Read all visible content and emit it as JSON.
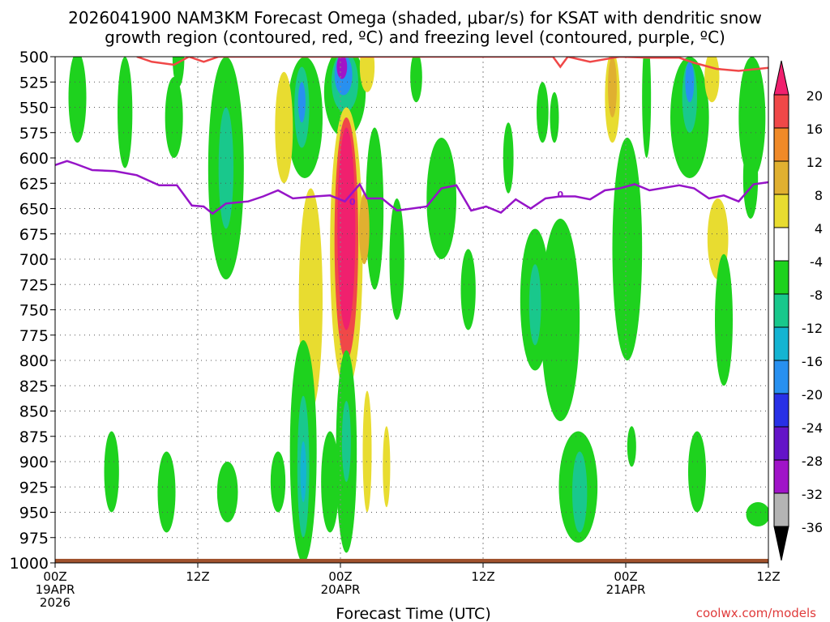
{
  "chart_data": {
    "type": "heatmap",
    "title_line1": "2026041900 NAM3KM Forecast Omega (shaded, μbar/s) for KSAT with dendritic snow",
    "title_line2": "growth region (contoured, red, ºC) and freezing level (contoured, purple, ºC)",
    "xlabel": "Forecast Time (UTC)",
    "credit": "coolwx.com/models",
    "x_range_hours": [
      0,
      48
    ],
    "y_range_mb": [
      500,
      1000
    ],
    "y_ticks": [
      {
        "v": 500,
        "label": "500"
      },
      {
        "v": 525,
        "label": "525"
      },
      {
        "v": 550,
        "label": "550"
      },
      {
        "v": 575,
        "label": "575"
      },
      {
        "v": 600,
        "label": "600"
      },
      {
        "v": 625,
        "label": "625"
      },
      {
        "v": 650,
        "label": "650"
      },
      {
        "v": 675,
        "label": "675"
      },
      {
        "v": 700,
        "label": "700"
      },
      {
        "v": 725,
        "label": "725"
      },
      {
        "v": 750,
        "label": "750"
      },
      {
        "v": 775,
        "label": "775"
      },
      {
        "v": 800,
        "label": "800"
      },
      {
        "v": 825,
        "label": "825"
      },
      {
        "v": 850,
        "label": "850"
      },
      {
        "v": 875,
        "label": "875"
      },
      {
        "v": 900,
        "label": "900"
      },
      {
        "v": 925,
        "label": "925"
      },
      {
        "v": 950,
        "label": "950"
      },
      {
        "v": 975,
        "label": "975"
      },
      {
        "v": 1000,
        "label": "1000"
      }
    ],
    "x_ticks": [
      {
        "h": 0,
        "l1": "00Z",
        "l2": "19APR",
        "l3": "2026"
      },
      {
        "h": 9.6,
        "l1": "12Z",
        "l2": "",
        "l3": ""
      },
      {
        "h": 19.2,
        "l1": "00Z",
        "l2": "20APR",
        "l3": ""
      },
      {
        "h": 28.8,
        "l1": "12Z",
        "l2": "",
        "l3": ""
      },
      {
        "h": 38.4,
        "l1": "00Z",
        "l2": "21APR",
        "l3": ""
      },
      {
        "h": 48,
        "l1": "12Z",
        "l2": "",
        "l3": ""
      }
    ],
    "colorbar": {
      "levels": [
        {
          "label": "20",
          "color": "#f0206e"
        },
        {
          "label": "16",
          "color": "#f04848"
        },
        {
          "label": "12",
          "color": "#f08a28"
        },
        {
          "label": "8",
          "color": "#e0b030"
        },
        {
          "label": "4",
          "color": "#e8dc30"
        },
        {
          "label": "-4",
          "color": "#ffffff"
        },
        {
          "label": "-8",
          "color": "#1ed21e"
        },
        {
          "label": "-12",
          "color": "#19c88c"
        },
        {
          "label": "-16",
          "color": "#14b4d2"
        },
        {
          "label": "-20",
          "color": "#2890f0"
        },
        {
          "label": "-24",
          "color": "#2830e6"
        },
        {
          "label": "-28",
          "color": "#6414c8"
        },
        {
          "label": "-32",
          "color": "#a014c8"
        },
        {
          "label": "-36",
          "color": "#b4b4b4"
        }
      ],
      "min_color": "#000000",
      "max_color": "#f0206e"
    },
    "colors": {
      "dgz_line": "#f04848",
      "freezing_line": "#9614c8",
      "ground": "#a0522d",
      "grid": "#555555",
      "green": "#1ed21e",
      "teal": "#19c88c",
      "cyan": "#14b4d2",
      "blue": "#2890f0",
      "darkblue": "#2830e6",
      "purple": "#a014c8",
      "yellow": "#e8dc30",
      "orange": "#e0b030",
      "red": "#f04848",
      "magenta": "#f0206e"
    },
    "freezing_level_label": "0",
    "freezing_level": [
      [
        0,
        607
      ],
      [
        0.8,
        603
      ],
      [
        1.4,
        606
      ],
      [
        2.5,
        612
      ],
      [
        4,
        613
      ],
      [
        5.5,
        617
      ],
      [
        7,
        627
      ],
      [
        8.2,
        627
      ],
      [
        9.2,
        647
      ],
      [
        10,
        648
      ],
      [
        10.6,
        655
      ],
      [
        11.5,
        645
      ],
      [
        13,
        643
      ],
      [
        14,
        638
      ],
      [
        15,
        632
      ],
      [
        16,
        640
      ],
      [
        17.5,
        638
      ],
      [
        18.5,
        637
      ],
      [
        19.5,
        643
      ],
      [
        20.5,
        626
      ],
      [
        21,
        640
      ],
      [
        22,
        640
      ],
      [
        23,
        652
      ],
      [
        25,
        648
      ],
      [
        26,
        630
      ],
      [
        27,
        627
      ],
      [
        28,
        652
      ],
      [
        29,
        648
      ],
      [
        30,
        654
      ],
      [
        31,
        641
      ],
      [
        32,
        650
      ],
      [
        33,
        640
      ],
      [
        34,
        638
      ],
      [
        35,
        638
      ],
      [
        36,
        641
      ],
      [
        37,
        632
      ],
      [
        38,
        630
      ],
      [
        39,
        626
      ],
      [
        40,
        632
      ],
      [
        42,
        627
      ],
      [
        43,
        630
      ],
      [
        44,
        640
      ],
      [
        45,
        637
      ],
      [
        46,
        643
      ],
      [
        47,
        626
      ],
      [
        48,
        624
      ]
    ],
    "dgz_line": [
      [
        5.5,
        500
      ],
      [
        6.5,
        505
      ],
      [
        8,
        508
      ],
      [
        9,
        500
      ],
      [
        10,
        505
      ],
      [
        11,
        500
      ],
      [
        12.5,
        500
      ],
      [
        33.5,
        500
      ],
      [
        34,
        510
      ],
      [
        34.5,
        500
      ],
      [
        36,
        505
      ],
      [
        38,
        500
      ],
      [
        40,
        501
      ],
      [
        42,
        501
      ],
      [
        43,
        506
      ],
      [
        44.5,
        512
      ],
      [
        46,
        514
      ],
      [
        48,
        511
      ]
    ],
    "omega_shapes": [
      {
        "c": "green",
        "h": 1.5,
        "p": 540,
        "w": 0.6,
        "d": 45
      },
      {
        "c": "green",
        "h": 4.7,
        "p": 555,
        "w": 0.5,
        "d": 55
      },
      {
        "c": "green",
        "h": 8.3,
        "p": 500,
        "w": 0.4,
        "d": 30
      },
      {
        "c": "green",
        "h": 8.0,
        "p": 560,
        "w": 0.6,
        "d": 40
      },
      {
        "c": "green",
        "h": 11.5,
        "p": 610,
        "w": 1.2,
        "d": 110
      },
      {
        "c": "teal",
        "h": 11.5,
        "p": 610,
        "w": 0.5,
        "d": 60
      },
      {
        "c": "green",
        "h": 16.8,
        "p": 560,
        "w": 1.2,
        "d": 60
      },
      {
        "c": "teal",
        "h": 16.6,
        "p": 550,
        "w": 0.5,
        "d": 40
      },
      {
        "c": "blue",
        "h": 16.6,
        "p": 545,
        "w": 0.25,
        "d": 20
      },
      {
        "c": "yellow",
        "h": 15.4,
        "p": 570,
        "w": 0.6,
        "d": 55
      },
      {
        "c": "yellow",
        "h": 17.2,
        "p": 740,
        "w": 0.8,
        "d": 110
      },
      {
        "c": "green",
        "h": 19.5,
        "p": 535,
        "w": 1.4,
        "d": 45
      },
      {
        "c": "teal",
        "h": 19.5,
        "p": 525,
        "w": 0.9,
        "d": 30
      },
      {
        "c": "blue",
        "h": 19.4,
        "p": 518,
        "w": 0.6,
        "d": 20
      },
      {
        "c": "purple",
        "h": 19.3,
        "p": 510,
        "w": 0.35,
        "d": 12
      },
      {
        "c": "yellow",
        "h": 21.0,
        "p": 510,
        "w": 0.5,
        "d": 25
      },
      {
        "c": "yellow",
        "h": 19.6,
        "p": 690,
        "w": 1.1,
        "d": 140
      },
      {
        "c": "red",
        "h": 19.6,
        "p": 680,
        "w": 0.8,
        "d": 120
      },
      {
        "c": "magenta",
        "h": 19.6,
        "p": 670,
        "w": 0.6,
        "d": 100
      },
      {
        "c": "green",
        "h": 21.5,
        "p": 650,
        "w": 0.6,
        "d": 80
      },
      {
        "c": "orange",
        "h": 20.8,
        "p": 670,
        "w": 0.35,
        "d": 35
      },
      {
        "c": "green",
        "h": 23.0,
        "p": 700,
        "w": 0.5,
        "d": 60
      },
      {
        "c": "green",
        "h": 24.3,
        "p": 520,
        "w": 0.4,
        "d": 25
      },
      {
        "c": "green",
        "h": 26.0,
        "p": 640,
        "w": 1.0,
        "d": 60
      },
      {
        "c": "green",
        "h": 27.8,
        "p": 730,
        "w": 0.5,
        "d": 40
      },
      {
        "c": "green",
        "h": 30.5,
        "p": 600,
        "w": 0.35,
        "d": 35
      },
      {
        "c": "green",
        "h": 33.6,
        "p": 560,
        "w": 0.3,
        "d": 25
      },
      {
        "c": "green",
        "h": 32.3,
        "p": 740,
        "w": 1.0,
        "d": 70
      },
      {
        "c": "teal",
        "h": 32.3,
        "p": 745,
        "w": 0.4,
        "d": 40
      },
      {
        "c": "green",
        "h": 34.0,
        "p": 760,
        "w": 1.3,
        "d": 100
      },
      {
        "c": "green",
        "h": 32.8,
        "p": 555,
        "w": 0.4,
        "d": 30
      },
      {
        "c": "green",
        "h": 38.5,
        "p": 690,
        "w": 1.0,
        "d": 110
      },
      {
        "c": "yellow",
        "h": 37.5,
        "p": 540,
        "w": 0.5,
        "d": 45
      },
      {
        "c": "orange",
        "h": 37.5,
        "p": 530,
        "w": 0.3,
        "d": 30
      },
      {
        "c": "green",
        "h": 39.8,
        "p": 540,
        "w": 0.3,
        "d": 60
      },
      {
        "c": "green",
        "h": 42.7,
        "p": 560,
        "w": 1.3,
        "d": 60
      },
      {
        "c": "teal",
        "h": 42.7,
        "p": 540,
        "w": 0.5,
        "d": 35
      },
      {
        "c": "blue",
        "h": 42.7,
        "p": 525,
        "w": 0.3,
        "d": 20
      },
      {
        "c": "yellow",
        "h": 44.2,
        "p": 520,
        "w": 0.5,
        "d": 25
      },
      {
        "c": "yellow",
        "h": 44.6,
        "p": 680,
        "w": 0.7,
        "d": 40
      },
      {
        "c": "green",
        "h": 45.0,
        "p": 760,
        "w": 0.6,
        "d": 65
      },
      {
        "c": "green",
        "h": 46.9,
        "p": 560,
        "w": 0.9,
        "d": 60
      },
      {
        "c": "green",
        "h": 3.8,
        "p": 910,
        "w": 0.5,
        "d": 40
      },
      {
        "c": "green",
        "h": 7.5,
        "p": 930,
        "w": 0.6,
        "d": 40
      },
      {
        "c": "green",
        "h": 11.6,
        "p": 930,
        "w": 0.7,
        "d": 30
      },
      {
        "c": "green",
        "h": 15.0,
        "p": 920,
        "w": 0.5,
        "d": 30
      },
      {
        "c": "green",
        "h": 16.7,
        "p": 890,
        "w": 0.9,
        "d": 110
      },
      {
        "c": "teal",
        "h": 16.7,
        "p": 905,
        "w": 0.4,
        "d": 70
      },
      {
        "c": "cyan",
        "h": 16.7,
        "p": 910,
        "w": 0.2,
        "d": 30
      },
      {
        "c": "green",
        "h": 18.5,
        "p": 920,
        "w": 0.6,
        "d": 50
      },
      {
        "c": "green",
        "h": 19.6,
        "p": 890,
        "w": 0.7,
        "d": 100
      },
      {
        "c": "teal",
        "h": 19.6,
        "p": 880,
        "w": 0.3,
        "d": 40
      },
      {
        "c": "yellow",
        "h": 21.0,
        "p": 890,
        "w": 0.3,
        "d": 60
      },
      {
        "c": "yellow",
        "h": 22.3,
        "p": 905,
        "w": 0.25,
        "d": 40
      },
      {
        "c": "green",
        "h": 35.2,
        "p": 925,
        "w": 1.3,
        "d": 55
      },
      {
        "c": "teal",
        "h": 35.3,
        "p": 930,
        "w": 0.5,
        "d": 40
      },
      {
        "c": "green",
        "h": 38.8,
        "p": 885,
        "w": 0.3,
        "d": 20
      },
      {
        "c": "green",
        "h": 43.2,
        "p": 910,
        "w": 0.6,
        "d": 40
      },
      {
        "c": "green",
        "h": 46.8,
        "p": 620,
        "w": 0.5,
        "d": 40
      },
      {
        "c": "green",
        "h": 47.3,
        "p": 952,
        "w": 0.8,
        "d": 12
      }
    ]
  }
}
